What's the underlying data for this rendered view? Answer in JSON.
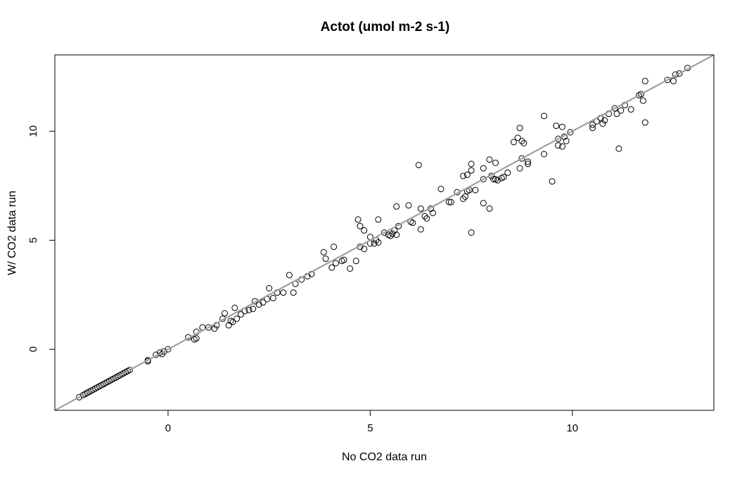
{
  "chart_data": {
    "type": "scatter",
    "title": "Actot (umol m-2 s-1)",
    "xlabel": "No CO2 data run",
    "ylabel": "W/ CO2 data run",
    "xlim": [
      -2.8,
      13.5
    ],
    "ylim": [
      -2.8,
      13.5
    ],
    "x_ticks": [
      0,
      5,
      10
    ],
    "y_ticks": [
      0,
      5,
      10
    ],
    "grid": false,
    "reference_line": {
      "slope": 1,
      "intercept": 0,
      "color": "#a0a0a0"
    },
    "marker": "open-circle",
    "series": [
      {
        "points": [
          [
            -2.2,
            -2.2
          ],
          [
            -2.1,
            -2.1
          ],
          [
            -2.05,
            -2.05
          ],
          [
            -2.0,
            -2.0
          ],
          [
            -1.95,
            -1.95
          ],
          [
            -1.9,
            -1.9
          ],
          [
            -1.85,
            -1.85
          ],
          [
            -1.8,
            -1.8
          ],
          [
            -1.75,
            -1.75
          ],
          [
            -1.7,
            -1.7
          ],
          [
            -1.65,
            -1.65
          ],
          [
            -1.6,
            -1.6
          ],
          [
            -1.55,
            -1.55
          ],
          [
            -1.5,
            -1.5
          ],
          [
            -1.45,
            -1.45
          ],
          [
            -1.4,
            -1.4
          ],
          [
            -1.35,
            -1.35
          ],
          [
            -1.3,
            -1.3
          ],
          [
            -1.25,
            -1.25
          ],
          [
            -1.2,
            -1.2
          ],
          [
            -1.15,
            -1.15
          ],
          [
            -1.1,
            -1.1
          ],
          [
            -1.05,
            -1.05
          ],
          [
            -1.0,
            -1.0
          ],
          [
            -0.95,
            -0.95
          ],
          [
            -0.5,
            -0.55
          ],
          [
            -0.5,
            -0.5
          ],
          [
            -0.3,
            -0.25
          ],
          [
            -0.2,
            -0.15
          ],
          [
            -0.15,
            -0.22
          ],
          [
            -0.1,
            -0.1
          ],
          [
            0.0,
            0.0
          ],
          [
            0.5,
            0.55
          ],
          [
            0.65,
            0.45
          ],
          [
            0.7,
            0.5
          ],
          [
            0.7,
            0.8
          ],
          [
            0.85,
            1.0
          ],
          [
            1.0,
            1.0
          ],
          [
            1.15,
            0.95
          ],
          [
            1.2,
            1.1
          ],
          [
            1.35,
            1.4
          ],
          [
            1.4,
            1.65
          ],
          [
            1.5,
            1.1
          ],
          [
            1.55,
            1.3
          ],
          [
            1.6,
            1.25
          ],
          [
            1.65,
            1.9
          ],
          [
            1.7,
            1.4
          ],
          [
            1.8,
            1.6
          ],
          [
            1.9,
            1.75
          ],
          [
            2.0,
            1.8
          ],
          [
            2.1,
            1.85
          ],
          [
            2.15,
            2.2
          ],
          [
            2.25,
            2.05
          ],
          [
            2.35,
            2.15
          ],
          [
            2.45,
            2.3
          ],
          [
            2.5,
            2.8
          ],
          [
            2.6,
            2.35
          ],
          [
            2.7,
            2.6
          ],
          [
            2.85,
            2.6
          ],
          [
            3.0,
            3.4
          ],
          [
            3.1,
            2.6
          ],
          [
            3.15,
            3.0
          ],
          [
            3.3,
            3.2
          ],
          [
            3.45,
            3.35
          ],
          [
            3.55,
            3.45
          ],
          [
            3.85,
            4.45
          ],
          [
            3.9,
            4.15
          ],
          [
            4.05,
            3.75
          ],
          [
            4.1,
            4.7
          ],
          [
            4.15,
            3.95
          ],
          [
            4.3,
            4.05
          ],
          [
            4.35,
            4.1
          ],
          [
            4.5,
            3.7
          ],
          [
            4.65,
            4.05
          ],
          [
            4.7,
            5.95
          ],
          [
            4.75,
            4.7
          ],
          [
            4.75,
            5.65
          ],
          [
            4.85,
            4.6
          ],
          [
            4.85,
            5.45
          ],
          [
            5.0,
            4.85
          ],
          [
            5.0,
            5.15
          ],
          [
            5.1,
            4.85
          ],
          [
            5.15,
            5.0
          ],
          [
            5.2,
            4.9
          ],
          [
            5.2,
            5.95
          ],
          [
            5.35,
            5.35
          ],
          [
            5.45,
            5.25
          ],
          [
            5.5,
            5.2
          ],
          [
            5.55,
            5.3
          ],
          [
            5.6,
            5.45
          ],
          [
            5.65,
            6.55
          ],
          [
            5.65,
            5.25
          ],
          [
            5.7,
            5.65
          ],
          [
            5.95,
            6.6
          ],
          [
            6.0,
            5.85
          ],
          [
            6.05,
            5.8
          ],
          [
            6.2,
            8.45
          ],
          [
            6.25,
            6.45
          ],
          [
            6.25,
            5.5
          ],
          [
            6.35,
            6.1
          ],
          [
            6.4,
            6.0
          ],
          [
            6.5,
            6.45
          ],
          [
            6.55,
            6.25
          ],
          [
            6.75,
            7.35
          ],
          [
            6.95,
            6.75
          ],
          [
            7.0,
            6.75
          ],
          [
            7.15,
            7.2
          ],
          [
            7.3,
            6.9
          ],
          [
            7.3,
            7.95
          ],
          [
            7.35,
            7.0
          ],
          [
            7.4,
            7.25
          ],
          [
            7.4,
            8.0
          ],
          [
            7.45,
            7.3
          ],
          [
            7.5,
            8.2
          ],
          [
            7.5,
            8.5
          ],
          [
            7.5,
            5.35
          ],
          [
            7.6,
            7.3
          ],
          [
            7.8,
            6.7
          ],
          [
            7.8,
            8.3
          ],
          [
            7.8,
            7.8
          ],
          [
            7.95,
            8.7
          ],
          [
            7.95,
            6.45
          ],
          [
            8.0,
            7.95
          ],
          [
            8.05,
            7.8
          ],
          [
            8.1,
            7.8
          ],
          [
            8.1,
            8.55
          ],
          [
            8.15,
            7.75
          ],
          [
            8.25,
            7.85
          ],
          [
            8.3,
            7.9
          ],
          [
            8.4,
            8.1
          ],
          [
            8.55,
            9.5
          ],
          [
            8.65,
            9.7
          ],
          [
            8.7,
            10.15
          ],
          [
            8.7,
            8.3
          ],
          [
            8.75,
            8.75
          ],
          [
            8.75,
            9.55
          ],
          [
            8.8,
            9.45
          ],
          [
            8.9,
            8.5
          ],
          [
            8.9,
            8.6
          ],
          [
            9.3,
            10.7
          ],
          [
            9.3,
            8.95
          ],
          [
            9.5,
            7.7
          ],
          [
            9.6,
            10.25
          ],
          [
            9.65,
            9.65
          ],
          [
            9.65,
            9.35
          ],
          [
            9.75,
            9.3
          ],
          [
            9.75,
            10.2
          ],
          [
            9.8,
            9.75
          ],
          [
            9.85,
            9.55
          ],
          [
            9.95,
            9.95
          ],
          [
            10.5,
            10.15
          ],
          [
            10.5,
            10.3
          ],
          [
            10.6,
            10.45
          ],
          [
            10.7,
            10.6
          ],
          [
            10.75,
            10.35
          ],
          [
            10.8,
            10.5
          ],
          [
            10.9,
            10.8
          ],
          [
            11.05,
            11.05
          ],
          [
            11.1,
            10.8
          ],
          [
            11.15,
            9.2
          ],
          [
            11.2,
            10.95
          ],
          [
            11.3,
            11.2
          ],
          [
            11.45,
            11.0
          ],
          [
            11.65,
            11.65
          ],
          [
            11.7,
            11.7
          ],
          [
            11.75,
            11.4
          ],
          [
            11.8,
            10.4
          ],
          [
            11.8,
            12.3
          ],
          [
            12.35,
            12.35
          ],
          [
            12.5,
            12.3
          ],
          [
            12.55,
            12.6
          ],
          [
            12.65,
            12.65
          ],
          [
            12.85,
            12.9
          ]
        ]
      }
    ]
  }
}
